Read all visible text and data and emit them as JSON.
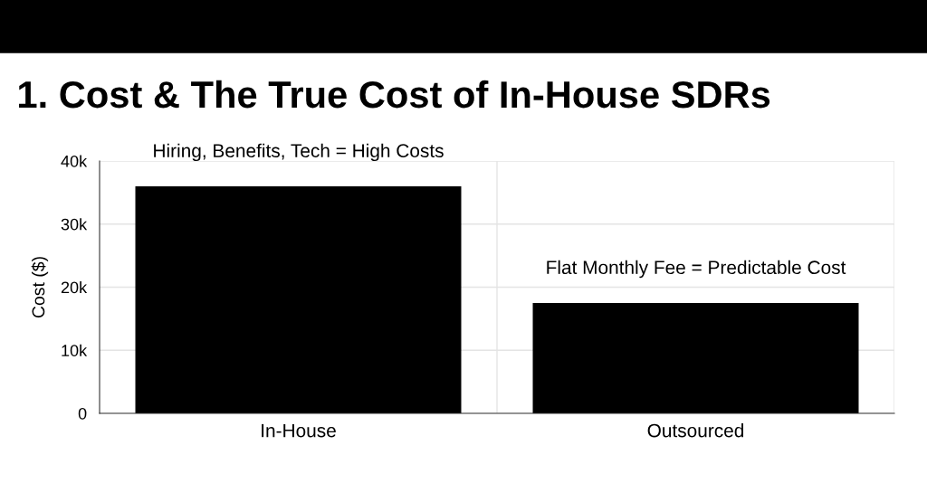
{
  "chart_data": {
    "type": "bar",
    "title": "1. Cost & The True Cost of In-House SDRs",
    "ylabel": "Cost ($)",
    "categories": [
      "In-House",
      "Outsourced"
    ],
    "values": [
      36000,
      17500
    ],
    "color": "#000000",
    "ylim": [
      0,
      40000
    ],
    "yticks": [
      0,
      {
        "value": 10000,
        "label": "10k"
      },
      {
        "value": 20000,
        "label": "20k"
      },
      {
        "value": 30000,
        "label": "30k"
      },
      {
        "value": 40000,
        "label": "40k"
      }
    ],
    "grid": true,
    "annotations": [
      {
        "text": "Hiring, Benefits, Tech = High Costs",
        "x": "In-House",
        "y": 36000
      },
      {
        "text": "Flat Monthly Fee = Predictable Cost",
        "x": "Outsourced",
        "y": 17500
      }
    ]
  }
}
